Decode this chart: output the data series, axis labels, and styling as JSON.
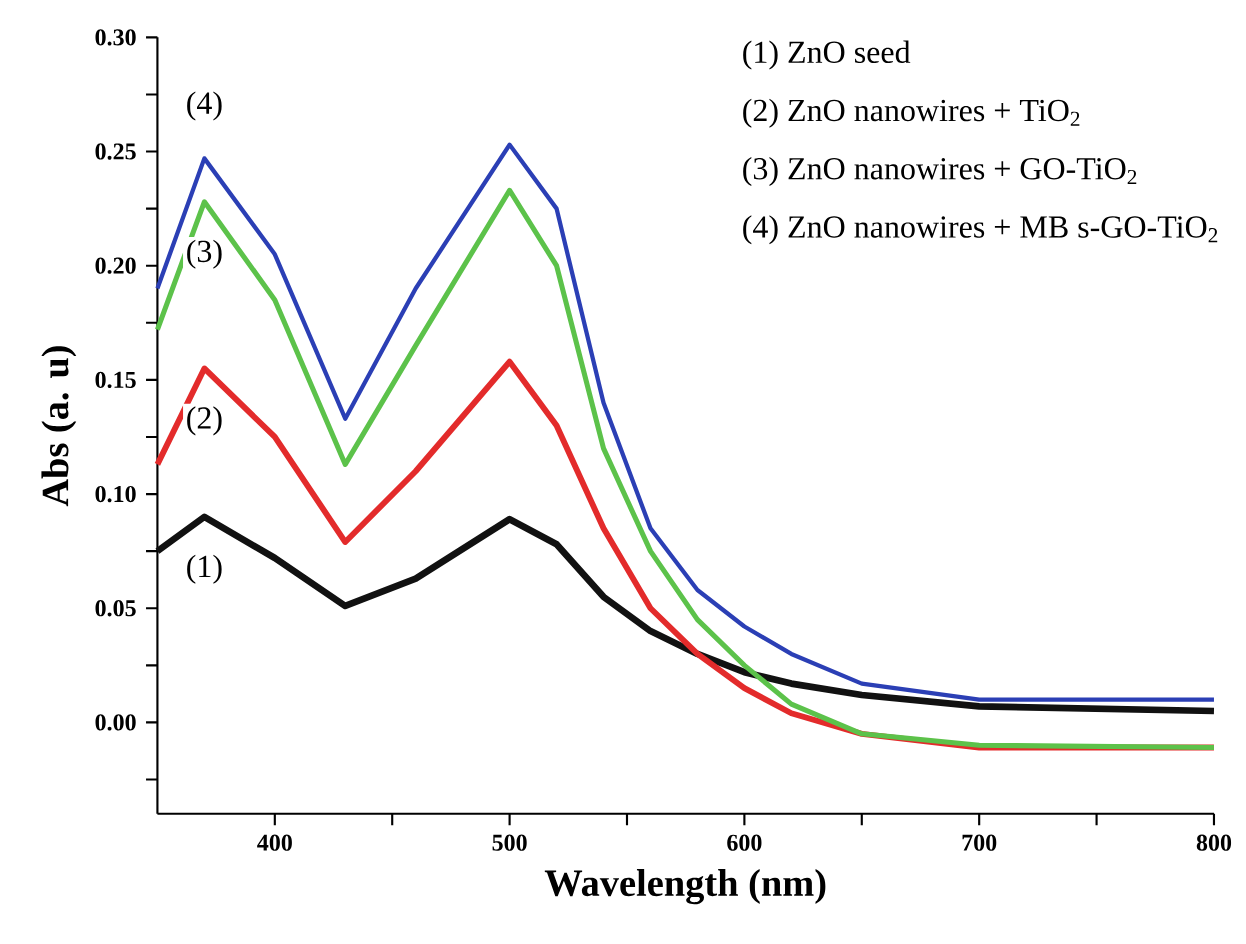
{
  "chart_data": {
    "type": "line",
    "xlabel": "Wavelength (nm)",
    "ylabel": "Abs (a. u)",
    "x": [
      350,
      370,
      400,
      430,
      460,
      500,
      520,
      540,
      560,
      580,
      600,
      620,
      650,
      700,
      800
    ],
    "series": [
      {
        "name": "(1)",
        "color": "#111111",
        "values": [
          0.075,
          0.09,
          0.072,
          0.051,
          0.063,
          0.089,
          0.078,
          0.055,
          0.04,
          0.03,
          0.022,
          0.017,
          0.012,
          0.007,
          0.005
        ]
      },
      {
        "name": "(2)",
        "color": "#e32b2b",
        "values": [
          0.113,
          0.155,
          0.125,
          0.079,
          0.11,
          0.158,
          0.13,
          0.085,
          0.05,
          0.03,
          0.015,
          0.004,
          -0.005,
          -0.011,
          -0.011
        ]
      },
      {
        "name": "(3)",
        "color": "#5cc24a",
        "values": [
          0.172,
          0.228,
          0.185,
          0.113,
          0.165,
          0.233,
          0.2,
          0.12,
          0.075,
          0.045,
          0.025,
          0.008,
          -0.005,
          -0.01,
          -0.011
        ]
      },
      {
        "name": "(4)",
        "color": "#2b3fb5",
        "values": [
          0.19,
          0.247,
          0.205,
          0.133,
          0.19,
          0.253,
          0.225,
          0.14,
          0.085,
          0.058,
          0.042,
          0.03,
          0.017,
          0.01,
          0.01
        ]
      }
    ],
    "xlim": [
      350,
      800
    ],
    "ylim": [
      -0.04,
      0.3
    ],
    "xticks": [
      400,
      {
        "value": 450,
        "label": null
      },
      500,
      {
        "value": 550,
        "label": null
      },
      600,
      {
        "value": 650,
        "label": null
      },
      700,
      {
        "value": 750,
        "label": null
      },
      800
    ],
    "yticks": [
      {
        "value": -0.025,
        "label": null
      },
      {
        "value": 0,
        "label": "0.00"
      },
      {
        "value": 0.025,
        "label": null
      },
      {
        "value": 0.05,
        "label": "0.05"
      },
      {
        "value": 0.075,
        "label": null
      },
      {
        "value": 0.1,
        "label": "0.10"
      },
      {
        "value": 0.125,
        "label": null
      },
      {
        "value": 0.15,
        "label": "0.15"
      },
      {
        "value": 0.175,
        "label": null
      },
      {
        "value": 0.2,
        "label": "0.20"
      },
      {
        "value": 0.225,
        "label": null
      },
      {
        "value": 0.25,
        "label": "0.25"
      },
      {
        "value": 0.275,
        "label": null
      },
      {
        "value": 0.3,
        "label": "0.30"
      }
    ],
    "annotations": [
      "(1) ZnO seed",
      "(2) ZnO nanowires + TiO$_{2}$",
      "(3) ZnO nanowires + GO-TiO$_{2}$",
      "(4) ZnO nanowires + MB s-GO-TiO$_{2}$"
    ],
    "legend": false,
    "grid": false,
    "marker": "none",
    "line_style": "solid"
  }
}
